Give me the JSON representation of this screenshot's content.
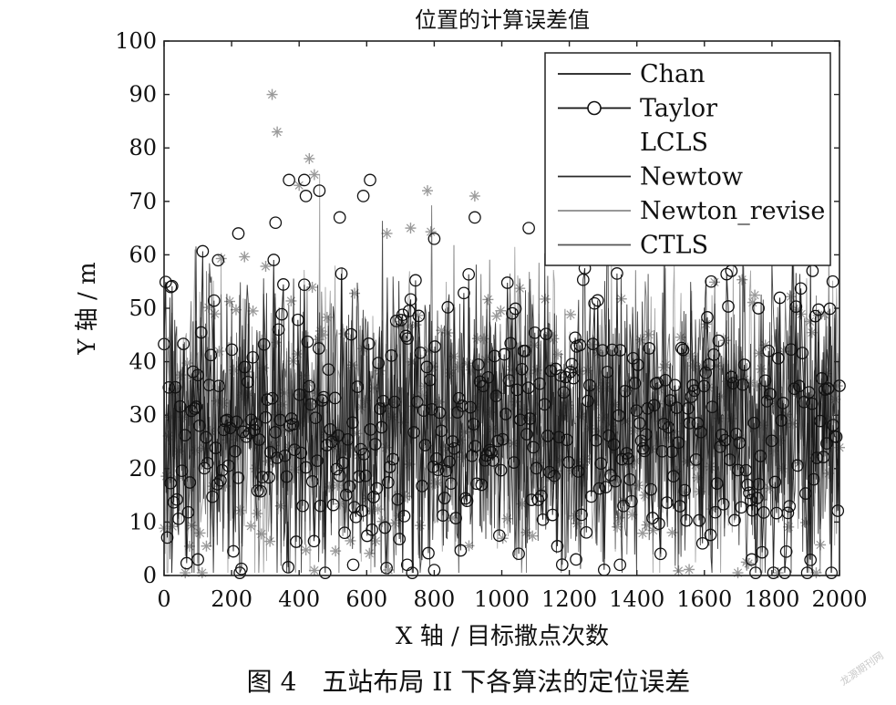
{
  "chart_data": {
    "type": "line",
    "title": "位置的计算误差值",
    "xlabel": "X 轴 / 目标撒点次数",
    "ylabel": "Y 轴 / m",
    "xlim": [
      0,
      2000
    ],
    "ylim": [
      0,
      100
    ],
    "x_ticks": [
      "0",
      "200",
      "400",
      "600",
      "800",
      "1000",
      "1200",
      "1400",
      "1600",
      "1800",
      "2000"
    ],
    "y_ticks": [
      "0",
      "10",
      "20",
      "30",
      "40",
      "50",
      "60",
      "70",
      "80",
      "90",
      "100"
    ],
    "legend_position": "top-right",
    "grid": false,
    "series": [
      {
        "name": "Chan",
        "style": "line",
        "color": "#1a1a1a"
      },
      {
        "name": "Taylor",
        "style": "line-circle",
        "color": "#111111"
      },
      {
        "name": "LCLS",
        "style": "star",
        "color": "#9a9a9a"
      },
      {
        "name": "Newtow",
        "style": "line",
        "color": "#2a2a2a"
      },
      {
        "name": "Newton_revise",
        "style": "line",
        "color": "#8a8a8a"
      },
      {
        "name": "CTLS",
        "style": "line",
        "color": "#555555"
      }
    ],
    "notable_points": {
      "LCLS": [
        [
          320,
          90
        ],
        [
          335,
          83
        ],
        [
          430,
          78
        ],
        [
          445,
          75
        ],
        [
          780,
          72
        ],
        [
          920,
          71
        ],
        [
          730,
          65
        ],
        [
          1420,
          62
        ],
        [
          660,
          64
        ],
        [
          400,
          73
        ]
      ],
      "Taylor": [
        [
          415,
          74
        ],
        [
          370,
          74
        ],
        [
          610,
          74
        ],
        [
          590,
          71
        ],
        [
          330,
          66
        ],
        [
          520,
          67
        ],
        [
          800,
          63
        ],
        [
          920,
          67
        ],
        [
          1080,
          65
        ],
        [
          1500,
          63
        ],
        [
          460,
          72
        ],
        [
          420,
          71
        ],
        [
          160,
          59
        ],
        [
          220,
          64
        ],
        [
          20,
          54
        ],
        [
          1620,
          55
        ],
        [
          1680,
          57
        ],
        [
          1760,
          50
        ],
        [
          1980,
          55
        ],
        [
          1920,
          57
        ],
        [
          800,
          1
        ],
        [
          720,
          2
        ],
        [
          560,
          2
        ],
        [
          1350,
          2
        ],
        [
          1740,
          3
        ],
        [
          1220,
          3
        ],
        [
          100,
          3
        ]
      ]
    }
  },
  "caption": "图 4　五站布局 II 下各算法的定位误差",
  "watermark": "龙源期刊网"
}
